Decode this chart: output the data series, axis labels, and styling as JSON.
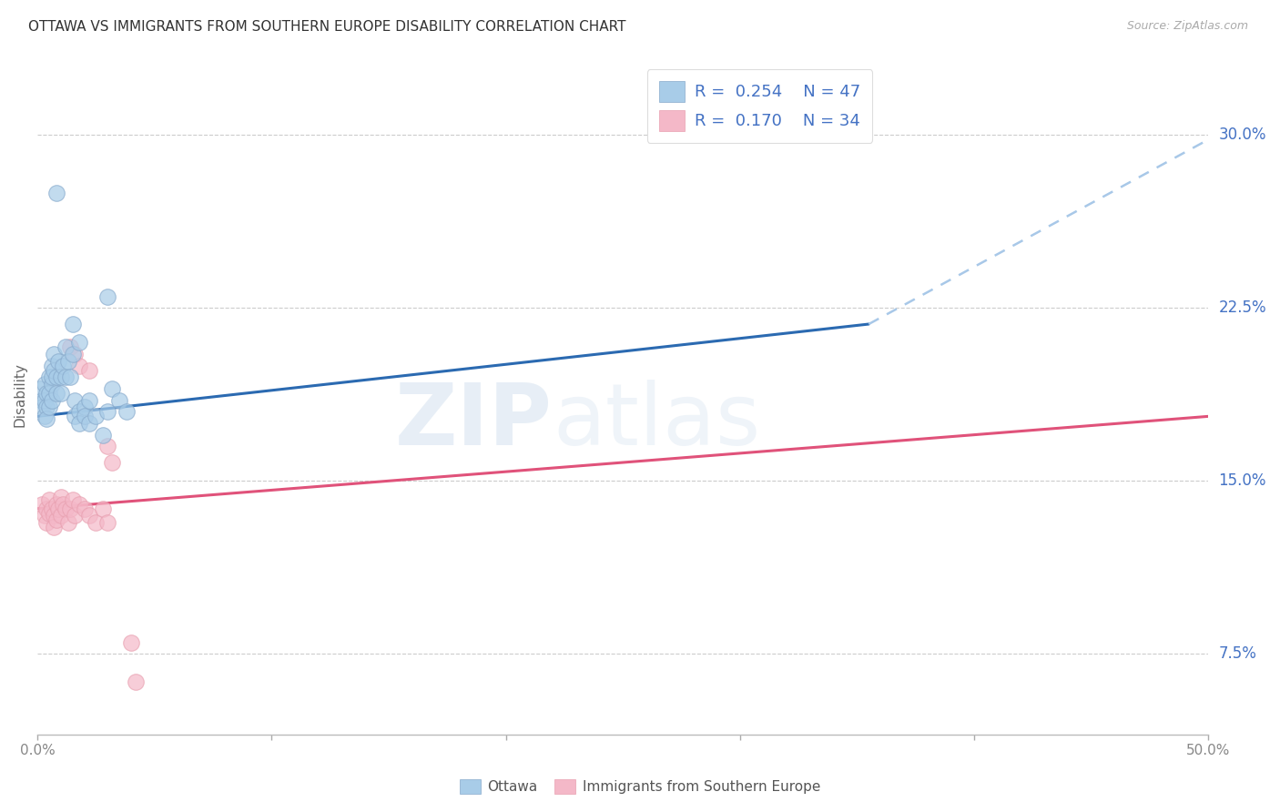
{
  "title": "OTTAWA VS IMMIGRANTS FROM SOUTHERN EUROPE DISABILITY CORRELATION CHART",
  "source": "Source: ZipAtlas.com",
  "ylabel": "Disability",
  "xlim": [
    0.0,
    0.5
  ],
  "ylim": [
    0.04,
    0.335
  ],
  "yticks": [
    0.075,
    0.15,
    0.225,
    0.3
  ],
  "ytick_labels": [
    "7.5%",
    "15.0%",
    "22.5%",
    "30.0%"
  ],
  "xticks": [
    0.0,
    0.1,
    0.2,
    0.3,
    0.4,
    0.5
  ],
  "xtick_labels": [
    "0.0%",
    "",
    "",
    "",
    "",
    "50.0%"
  ],
  "legend_r1": "0.254",
  "legend_n1": "47",
  "legend_r2": "0.170",
  "legend_n2": "34",
  "watermark": "ZIP",
  "watermark2": "atlas",
  "blue_color": "#a8cce8",
  "pink_color": "#f4b8c8",
  "blue_line_color": "#2b6ab1",
  "pink_line_color": "#e0527a",
  "blue_scatter": [
    [
      0.001,
      0.19
    ],
    [
      0.002,
      0.185
    ],
    [
      0.002,
      0.182
    ],
    [
      0.003,
      0.192
    ],
    [
      0.003,
      0.185
    ],
    [
      0.003,
      0.178
    ],
    [
      0.004,
      0.188
    ],
    [
      0.004,
      0.182
    ],
    [
      0.004,
      0.177
    ],
    [
      0.005,
      0.195
    ],
    [
      0.005,
      0.188
    ],
    [
      0.005,
      0.182
    ],
    [
      0.006,
      0.192
    ],
    [
      0.006,
      0.185
    ],
    [
      0.006,
      0.2
    ],
    [
      0.006,
      0.195
    ],
    [
      0.007,
      0.205
    ],
    [
      0.007,
      0.198
    ],
    [
      0.008,
      0.195
    ],
    [
      0.008,
      0.188
    ],
    [
      0.009,
      0.202
    ],
    [
      0.01,
      0.195
    ],
    [
      0.01,
      0.188
    ],
    [
      0.011,
      0.2
    ],
    [
      0.012,
      0.208
    ],
    [
      0.012,
      0.195
    ],
    [
      0.013,
      0.202
    ],
    [
      0.014,
      0.195
    ],
    [
      0.015,
      0.205
    ],
    [
      0.016,
      0.185
    ],
    [
      0.016,
      0.178
    ],
    [
      0.018,
      0.18
    ],
    [
      0.018,
      0.175
    ],
    [
      0.02,
      0.182
    ],
    [
      0.02,
      0.178
    ],
    [
      0.022,
      0.185
    ],
    [
      0.022,
      0.175
    ],
    [
      0.025,
      0.178
    ],
    [
      0.028,
      0.17
    ],
    [
      0.03,
      0.18
    ],
    [
      0.032,
      0.19
    ],
    [
      0.035,
      0.185
    ],
    [
      0.038,
      0.18
    ],
    [
      0.015,
      0.218
    ],
    [
      0.018,
      0.21
    ],
    [
      0.008,
      0.275
    ],
    [
      0.03,
      0.23
    ]
  ],
  "pink_scatter": [
    [
      0.002,
      0.14
    ],
    [
      0.003,
      0.135
    ],
    [
      0.004,
      0.138
    ],
    [
      0.004,
      0.132
    ],
    [
      0.005,
      0.142
    ],
    [
      0.005,
      0.136
    ],
    [
      0.006,
      0.138
    ],
    [
      0.007,
      0.135
    ],
    [
      0.007,
      0.13
    ],
    [
      0.008,
      0.14
    ],
    [
      0.008,
      0.133
    ],
    [
      0.009,
      0.138
    ],
    [
      0.01,
      0.143
    ],
    [
      0.01,
      0.135
    ],
    [
      0.011,
      0.14
    ],
    [
      0.012,
      0.138
    ],
    [
      0.013,
      0.132
    ],
    [
      0.014,
      0.138
    ],
    [
      0.015,
      0.142
    ],
    [
      0.016,
      0.135
    ],
    [
      0.018,
      0.14
    ],
    [
      0.02,
      0.138
    ],
    [
      0.022,
      0.135
    ],
    [
      0.025,
      0.132
    ],
    [
      0.028,
      0.138
    ],
    [
      0.03,
      0.132
    ],
    [
      0.014,
      0.208
    ],
    [
      0.016,
      0.205
    ],
    [
      0.018,
      0.2
    ],
    [
      0.022,
      0.198
    ],
    [
      0.03,
      0.165
    ],
    [
      0.032,
      0.158
    ],
    [
      0.04,
      0.08
    ],
    [
      0.042,
      0.063
    ]
  ],
  "blue_trend_x": [
    0.0,
    0.355,
    0.5
  ],
  "blue_trend_y": [
    0.178,
    0.218,
    0.298
  ],
  "blue_solid_range": [
    0.0,
    0.355
  ],
  "blue_dash_range": [
    0.355,
    0.5
  ],
  "pink_trend_x": [
    0.0,
    0.5
  ],
  "pink_trend_y": [
    0.138,
    0.178
  ],
  "background_color": "#ffffff",
  "grid_color": "#cccccc",
  "axis_label_color": "#4472c4",
  "legend_label_color": "#4472c4",
  "bottom_label_color": "#555555"
}
